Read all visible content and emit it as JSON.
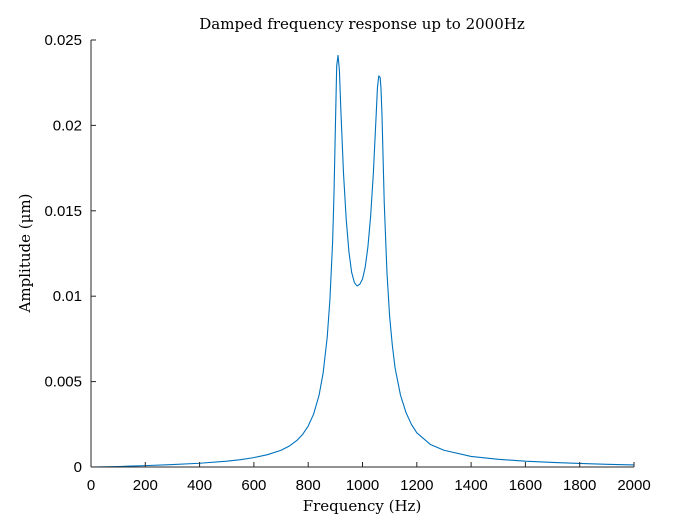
{
  "chart_data": {
    "type": "line",
    "title": "Damped frequency response up to 2000Hz",
    "xlabel": "Frequency (Hz)",
    "ylabel": "Amplitude (μm)",
    "xlim": [
      0,
      2000
    ],
    "ylim": [
      0,
      0.025
    ],
    "x_ticks": [
      "0",
      "200",
      "400",
      "600",
      "800",
      "1000",
      "1200",
      "1400",
      "1600",
      "1800",
      "2000"
    ],
    "y_ticks": [
      "0",
      "0.005",
      "0.01",
      "0.015",
      "0.02",
      "0.025"
    ],
    "grid": false,
    "series": [
      {
        "color": "#0072bd",
        "x": [
          0,
          100,
          200,
          300,
          400,
          500,
          550,
          600,
          650,
          700,
          730,
          760,
          780,
          800,
          820,
          840,
          855,
          870,
          880,
          890,
          895,
          900,
          905,
          910,
          915,
          920,
          930,
          940,
          950,
          960,
          970,
          980,
          990,
          1000,
          1010,
          1020,
          1030,
          1040,
          1050,
          1055,
          1060,
          1065,
          1068,
          1072,
          1076,
          1080,
          1090,
          1100,
          1110,
          1120,
          1140,
          1160,
          1180,
          1200,
          1250,
          1300,
          1400,
          1500,
          1600,
          1700,
          1800,
          1900,
          2000
        ],
        "y": [
          0.0,
          3e-05,
          8e-05,
          0.00014,
          0.00022,
          0.00034,
          0.00043,
          0.00055,
          0.00072,
          0.00098,
          0.00122,
          0.00158,
          0.00192,
          0.0024,
          0.0031,
          0.0042,
          0.0055,
          0.0076,
          0.0098,
          0.0132,
          0.016,
          0.0198,
          0.0235,
          0.0241,
          0.0232,
          0.021,
          0.0172,
          0.0145,
          0.0126,
          0.0114,
          0.0108,
          0.0106,
          0.0107,
          0.011,
          0.0117,
          0.0129,
          0.0147,
          0.0172,
          0.0205,
          0.0222,
          0.0229,
          0.0228,
          0.0222,
          0.0205,
          0.018,
          0.0155,
          0.0114,
          0.0088,
          0.0071,
          0.0058,
          0.0042,
          0.0032,
          0.0025,
          0.002,
          0.00132,
          0.00098,
          0.00062,
          0.00045,
          0.00034,
          0.00027,
          0.00021,
          0.00016,
          0.00012
        ]
      }
    ]
  }
}
